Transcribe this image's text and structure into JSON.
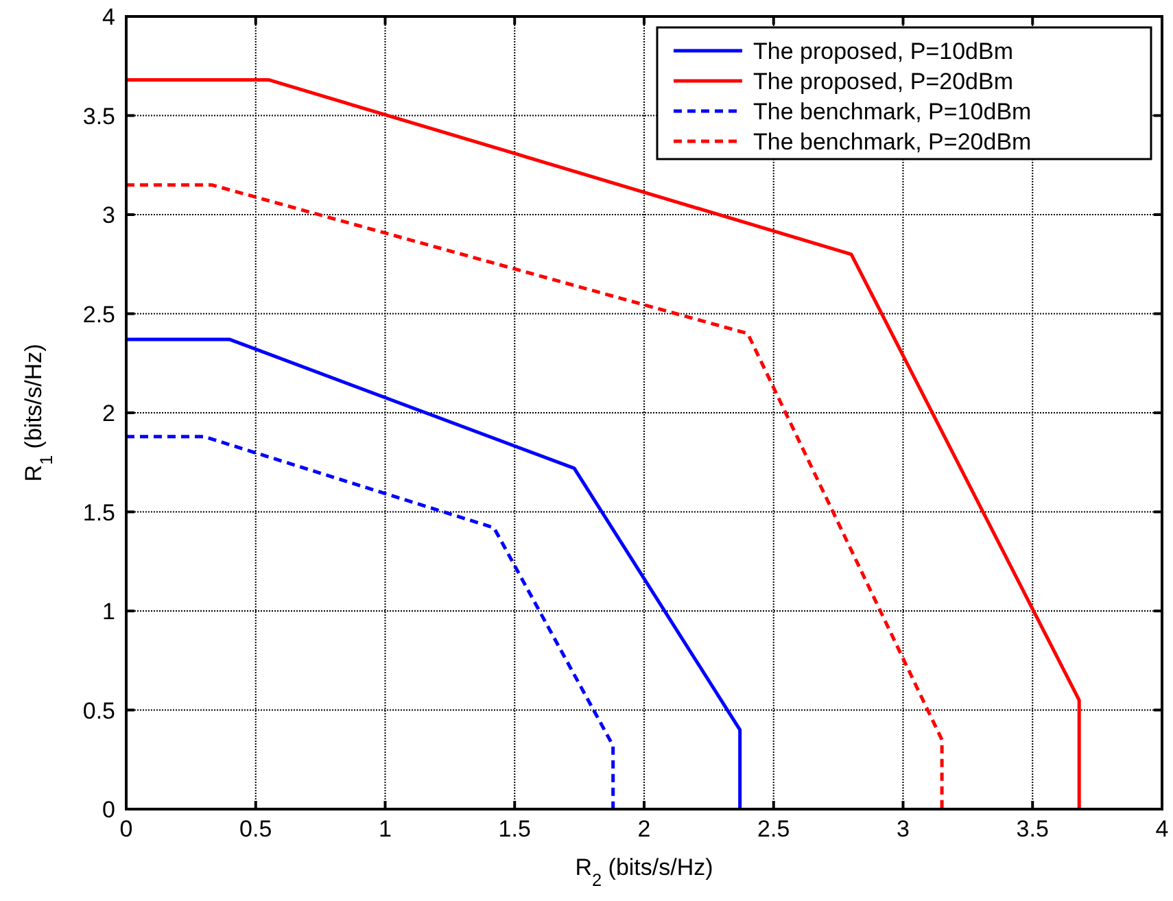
{
  "chart_data": {
    "type": "line",
    "xlabel": "R$_{2}$ (bits/s/Hz)",
    "ylabel": "R$_{1}$ (bits/s/Hz)",
    "xlim": [
      0,
      4
    ],
    "ylim": [
      0,
      4
    ],
    "xticks": [
      0,
      0.5,
      1,
      1.5,
      2,
      2.5,
      3,
      3.5,
      4
    ],
    "yticks": [
      0,
      0.5,
      1,
      1.5,
      2,
      2.5,
      3,
      3.5,
      4
    ],
    "grid": true,
    "legend": "top right",
    "series": [
      {
        "name": "The proposed, P=10dBm",
        "color": "#0000ff",
        "line_style": "solid",
        "x": [
          0,
          0.4,
          1.73,
          2.37,
          2.37
        ],
        "values": [
          2.37,
          2.37,
          1.72,
          0.4,
          0
        ]
      },
      {
        "name": "The proposed, P=20dBm",
        "color": "#ff0000",
        "line_style": "solid",
        "x": [
          0,
          0.55,
          2.8,
          3.68,
          3.68
        ],
        "values": [
          3.68,
          3.68,
          2.8,
          0.55,
          0
        ]
      },
      {
        "name": "The benchmark, P=10dBm",
        "color": "#0000ff",
        "line_style": "dashed",
        "x": [
          0,
          0.3,
          1.42,
          1.88,
          1.88
        ],
        "values": [
          1.88,
          1.88,
          1.42,
          0.32,
          0
        ]
      },
      {
        "name": "The benchmark, P=20dBm",
        "color": "#ff0000",
        "line_style": "dashed",
        "x": [
          0,
          0.33,
          2.4,
          3.15,
          3.15
        ],
        "values": [
          3.15,
          3.15,
          2.4,
          0.35,
          0
        ]
      }
    ]
  }
}
